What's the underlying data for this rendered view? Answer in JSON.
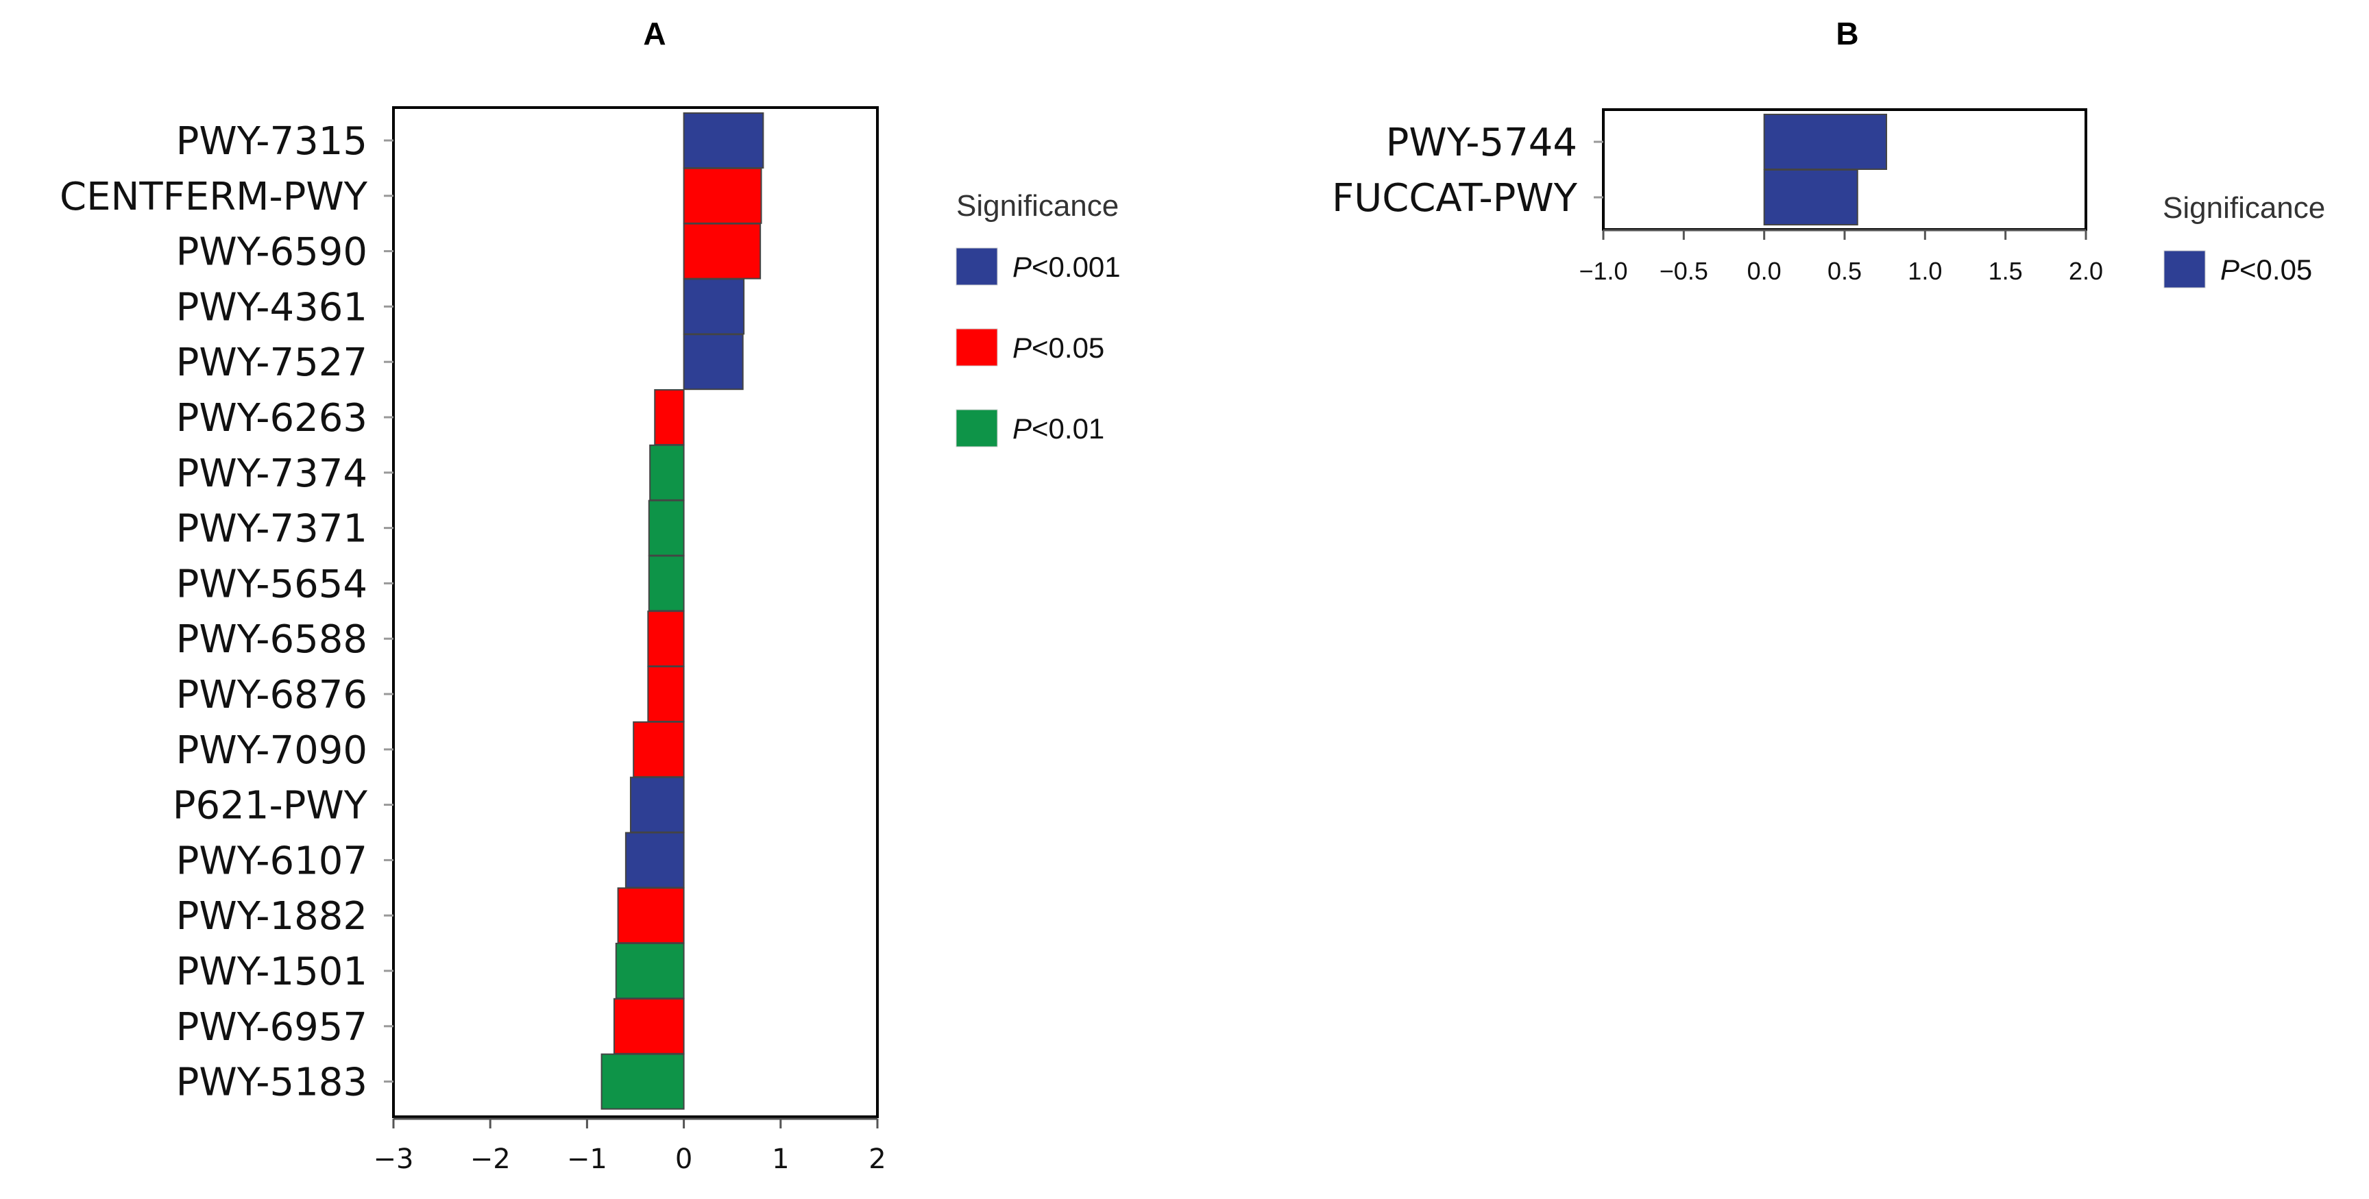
{
  "chart_data": [
    {
      "panel": "A",
      "title": "A",
      "type": "bar",
      "orientation": "horizontal",
      "categories": [
        "PWY-7315",
        "CENTFERM-PWY",
        "PWY-6590",
        "PWY-4361",
        "PWY-7527",
        "PWY-6263",
        "PWY-7374",
        "PWY-7371",
        "PWY-5654",
        "PWY-6588",
        "PWY-6876",
        "PWY-7090",
        "P621-PWY",
        "PWY-6107",
        "PWY-1882",
        "PWY-1501",
        "PWY-6957",
        "PWY-5183"
      ],
      "values": [
        0.82,
        0.8,
        0.79,
        0.62,
        0.61,
        -0.3,
        -0.35,
        -0.36,
        -0.36,
        -0.37,
        -0.37,
        -0.52,
        -0.55,
        -0.6,
        -0.68,
        -0.7,
        -0.72,
        -0.85
      ],
      "significance": [
        "P<0.001",
        "P<0.05",
        "P<0.05",
        "P<0.001",
        "P<0.001",
        "P<0.05",
        "P<0.01",
        "P<0.01",
        "P<0.01",
        "P<0.05",
        "P<0.05",
        "P<0.05",
        "P<0.001",
        "P<0.001",
        "P<0.05",
        "P<0.01",
        "P<0.05",
        "P<0.01"
      ],
      "xlim": [
        -3,
        2
      ],
      "xticks": [
        -3,
        -2,
        -1,
        0,
        1,
        2
      ],
      "xtick_labels": [
        "−3",
        "−2",
        "−1",
        "0",
        "1",
        "2"
      ],
      "xlabel": "",
      "ylabel": "",
      "legend": {
        "title": "Significance",
        "position": "right",
        "entries": [
          {
            "key": "P<0.001",
            "prefix": "P",
            "text": "<0.001",
            "color": "#2E3F94"
          },
          {
            "key": "P<0.05",
            "prefix": "P",
            "text": "<0.05",
            "color": "#FF0000"
          },
          {
            "key": "P<0.01",
            "prefix": "P",
            "text": "<0.01",
            "color": "#0E9448"
          }
        ]
      }
    },
    {
      "panel": "B",
      "title": "B",
      "type": "bar",
      "orientation": "horizontal",
      "categories": [
        "PWY-5744",
        "FUCCAT-PWY"
      ],
      "values": [
        0.76,
        0.58
      ],
      "significance": [
        "P<0.05",
        "P<0.05"
      ],
      "xlim": [
        -1.0,
        2.0
      ],
      "xticks": [
        -1.0,
        -0.5,
        0.0,
        0.5,
        1.0,
        1.5,
        2.0
      ],
      "xtick_labels": [
        "−1.0",
        "−0.5",
        "0.0",
        "0.5",
        "1.0",
        "1.5",
        "2.0"
      ],
      "xlabel": "",
      "ylabel": "",
      "legend": {
        "title": "Significance",
        "position": "right",
        "entries": [
          {
            "key": "P<0.05",
            "prefix": "P",
            "text": "<0.05",
            "color": "#2E3F94"
          }
        ]
      }
    }
  ]
}
